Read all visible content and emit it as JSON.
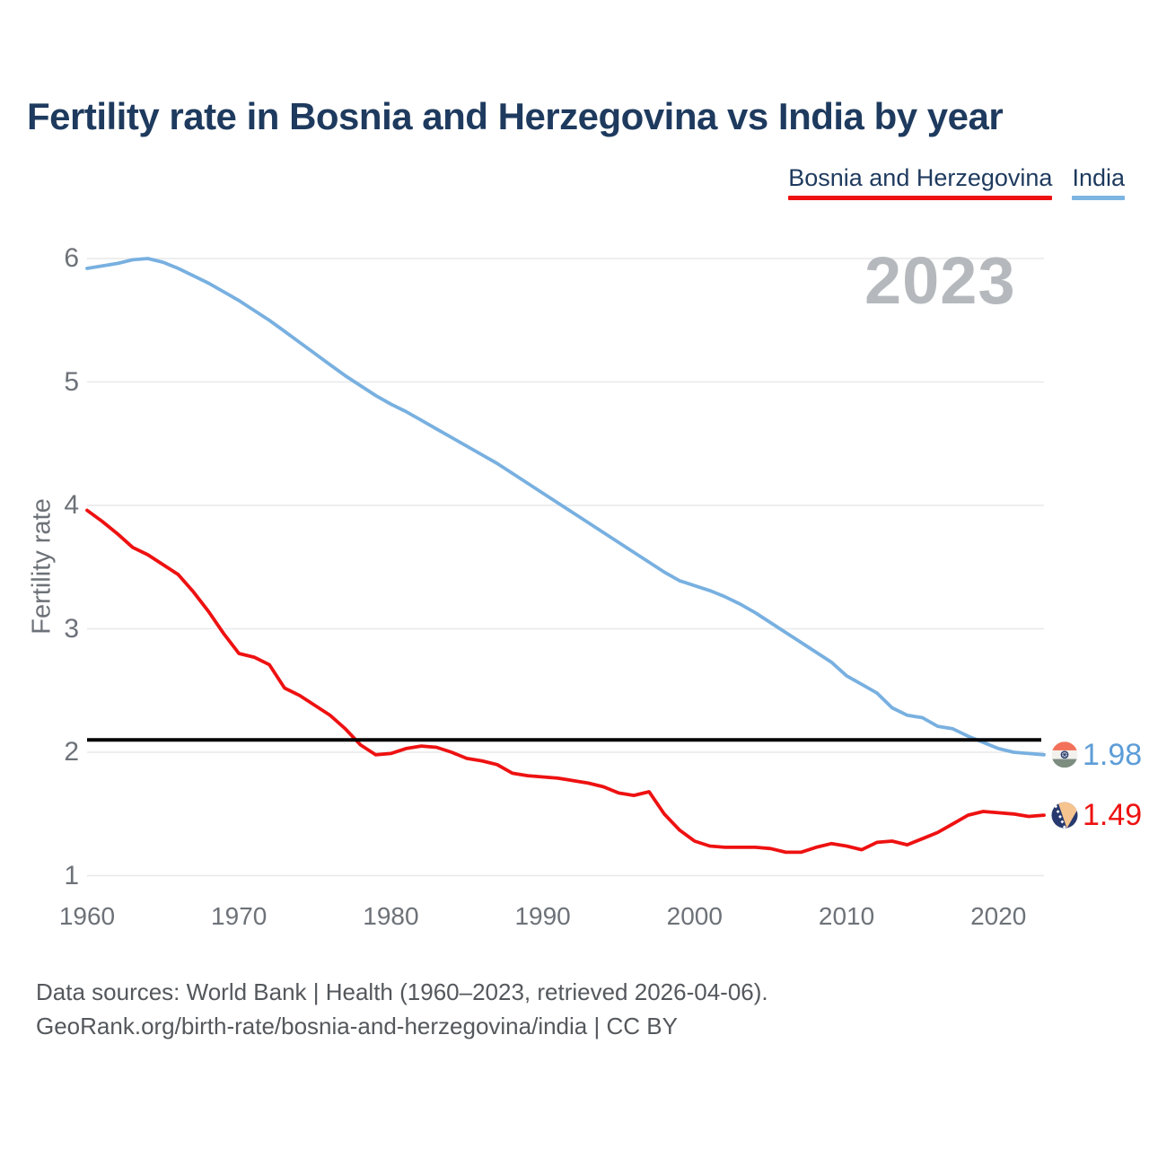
{
  "header": {
    "title": "Fertility rate in Bosnia and Herzegovina vs India by year"
  },
  "legend": {
    "items": [
      {
        "id": "bosnia",
        "label": "Bosnia and Herzegovina",
        "color": "#ee1111"
      },
      {
        "id": "india",
        "label": "India",
        "color": "#7cb4e2"
      }
    ]
  },
  "watermark": "2023",
  "footer": {
    "line1": "Data sources: World Bank | Health (1960–2023, retrieved 2026-04-06).",
    "line2": "GeoRank.org/birth-rate/bosnia-and-herzegovina/india | CC BY"
  },
  "icons": {
    "india_flag": {
      "saffron": "#f3715a",
      "white": "#f3f1ee",
      "green": "#7d8d80",
      "chakra": "#2d3f70"
    },
    "bosnia_flag": {
      "field": "#27396e",
      "triangle": "#f6c48f",
      "stars": "#ffffff"
    }
  },
  "chart_data": {
    "type": "line",
    "title": "Fertility rate in Bosnia and Herzegovina vs India by year",
    "xlabel": "",
    "ylabel": "Fertility rate",
    "x_start": 1960,
    "x_end": 2023,
    "xlim": [
      1960,
      2023
    ],
    "ylim": [
      1,
      6
    ],
    "xticks": [
      1960,
      1970,
      1980,
      1990,
      2000,
      2010,
      2020
    ],
    "yticks": [
      1,
      2,
      3,
      4,
      5,
      6
    ],
    "grid": true,
    "legend_position": "top-right",
    "gridline_color": "#e8e9ea",
    "reference_line": {
      "value": 2.1,
      "color": "#000000"
    },
    "current_year_watermark": "2023",
    "series": [
      {
        "id": "india",
        "name": "India",
        "color": "#78b0e0",
        "end_label": "1.98",
        "end_value_color": "#5d9dd8",
        "flag_icon": "india-flag-icon",
        "values": [
          5.92,
          5.94,
          5.96,
          5.99,
          6.0,
          5.97,
          5.92,
          5.86,
          5.8,
          5.73,
          5.66,
          5.58,
          5.5,
          5.41,
          5.32,
          5.23,
          5.14,
          5.05,
          4.97,
          4.89,
          4.82,
          4.76,
          4.69,
          4.62,
          4.55,
          4.48,
          4.41,
          4.34,
          4.26,
          4.18,
          4.1,
          4.02,
          3.94,
          3.86,
          3.78,
          3.7,
          3.62,
          3.54,
          3.46,
          3.39,
          3.35,
          3.31,
          3.26,
          3.2,
          3.13,
          3.05,
          2.97,
          2.89,
          2.81,
          2.73,
          2.62,
          2.55,
          2.48,
          2.36,
          2.3,
          2.28,
          2.21,
          2.19,
          2.13,
          2.08,
          2.03,
          2.0,
          1.99,
          1.98
        ]
      },
      {
        "id": "bosnia",
        "name": "Bosnia and Herzegovina",
        "color": "#ee1111",
        "end_label": "1.49",
        "end_value_color": "#ee1111",
        "flag_icon": "bosnia-flag-icon",
        "values": [
          3.96,
          3.87,
          3.77,
          3.66,
          3.6,
          3.52,
          3.44,
          3.3,
          3.14,
          2.96,
          2.8,
          2.77,
          2.71,
          2.52,
          2.46,
          2.38,
          2.3,
          2.19,
          2.06,
          1.98,
          1.99,
          2.03,
          2.05,
          2.04,
          2.0,
          1.95,
          1.93,
          1.9,
          1.83,
          1.81,
          1.8,
          1.79,
          1.77,
          1.75,
          1.72,
          1.67,
          1.65,
          1.68,
          1.5,
          1.37,
          1.28,
          1.24,
          1.23,
          1.23,
          1.23,
          1.22,
          1.19,
          1.19,
          1.23,
          1.26,
          1.24,
          1.21,
          1.27,
          1.28,
          1.25,
          1.3,
          1.35,
          1.42,
          1.49,
          1.52,
          1.51,
          1.5,
          1.48,
          1.49
        ]
      }
    ]
  }
}
